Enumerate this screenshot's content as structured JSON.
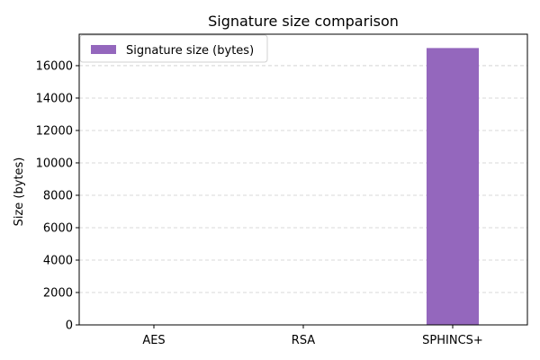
{
  "chart_data": {
    "type": "bar",
    "title": "Signature size comparison",
    "xlabel": "",
    "ylabel": "Size (bytes)",
    "categories": [
      "AES",
      "RSA",
      "SPHINCS+"
    ],
    "series": [
      {
        "name": "Signature size (bytes)",
        "values": [
          0,
          0,
          17088
        ],
        "color": "#9467bd"
      }
    ],
    "ylim": [
      0,
      17942
    ],
    "yticks": [
      0,
      2000,
      4000,
      6000,
      8000,
      10000,
      12000,
      14000,
      16000
    ],
    "grid": "y-dashed",
    "legend_position": "top-left"
  }
}
